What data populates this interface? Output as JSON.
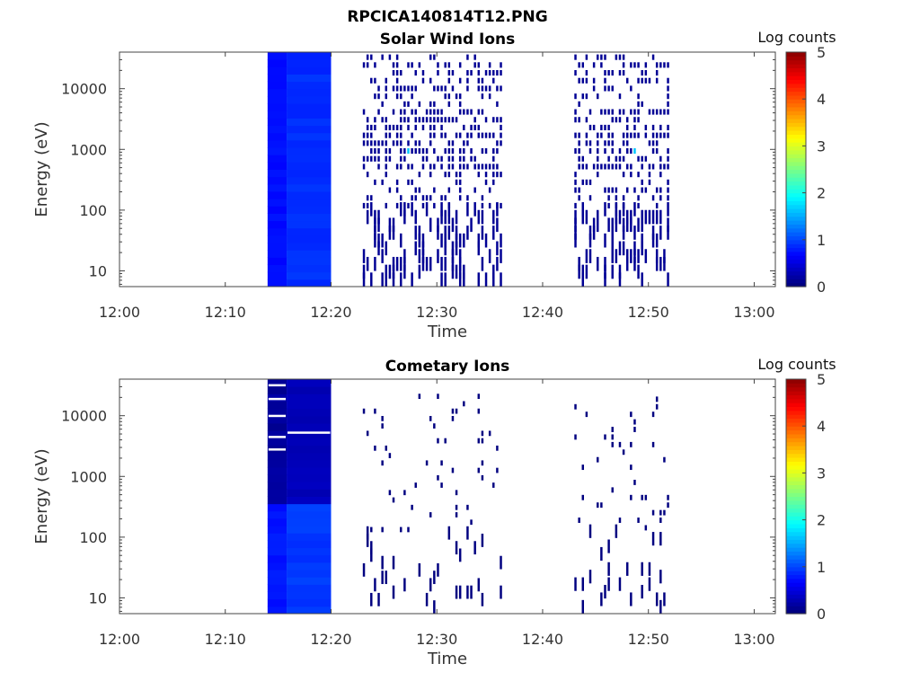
{
  "figure_title": "RPCICA140814T12.PNG",
  "chart_data": [
    {
      "type": "heatmap",
      "title": "Solar Wind Ions",
      "xlabel": "Time",
      "ylabel": "Energy (eV)",
      "y_scale": "log",
      "xlim": [
        "12:00",
        "13:02"
      ],
      "ylim": [
        5.5,
        40000
      ],
      "xticks": [
        "12:00",
        "12:10",
        "12:20",
        "12:30",
        "12:40",
        "12:50",
        "13:00"
      ],
      "yticks": [
        "10",
        "100",
        "1000",
        "10000"
      ],
      "colorbar": {
        "label": "Log counts",
        "range": [
          0,
          5
        ],
        "ticks": [
          "0",
          "1",
          "2",
          "3",
          "4",
          "5"
        ],
        "colormap": "jet"
      },
      "grid": false,
      "blocks": [
        {
          "t_start": "12:14",
          "t_end": "12:20",
          "energy_range": [
            5.5,
            40000
          ],
          "log_counts": 0.8,
          "description": "continuous moderate counts"
        }
      ],
      "scattered_bursts": [
        {
          "t_start": "12:23",
          "t_end": "12:36",
          "energy_range": [
            5.5,
            40000
          ],
          "typical_log_counts": 0.1,
          "peak_log_counts": 1.6,
          "peak_energy": 800
        },
        {
          "t_start": "12:43",
          "t_end": "12:52",
          "energy_range": [
            5.5,
            40000
          ],
          "typical_log_counts": 0.1,
          "peak_log_counts": 1.6,
          "peak_energy": 800
        }
      ]
    },
    {
      "type": "heatmap",
      "title": "Cometary Ions",
      "xlabel": "Time",
      "ylabel": "Energy (eV)",
      "y_scale": "log",
      "xlim": [
        "12:00",
        "13:02"
      ],
      "ylim": [
        5.5,
        40000
      ],
      "xticks": [
        "12:00",
        "12:10",
        "12:20",
        "12:30",
        "12:40",
        "12:50",
        "13:00"
      ],
      "yticks": [
        "10",
        "100",
        "1000",
        "10000"
      ],
      "colorbar": {
        "label": "Log counts",
        "range": [
          0,
          5
        ],
        "ticks": [
          "0",
          "1",
          "2",
          "3",
          "4",
          "5"
        ],
        "colormap": "jet"
      },
      "grid": false,
      "blocks": [
        {
          "t_start": "12:14",
          "t_end": "12:20",
          "energy_range": [
            5.5,
            40000
          ],
          "log_counts": 0.3,
          "description": "low-energy part brighter below ~300 eV"
        }
      ],
      "scattered_bursts": [
        {
          "t_start": "12:23",
          "t_end": "12:36",
          "energy_range": [
            5.5,
            25000
          ],
          "typical_log_counts": 0.0,
          "peak_log_counts": 0.2
        },
        {
          "t_start": "12:43",
          "t_end": "12:52",
          "energy_range": [
            5.5,
            30000
          ],
          "typical_log_counts": 0.0,
          "peak_log_counts": 0.2
        }
      ]
    }
  ]
}
